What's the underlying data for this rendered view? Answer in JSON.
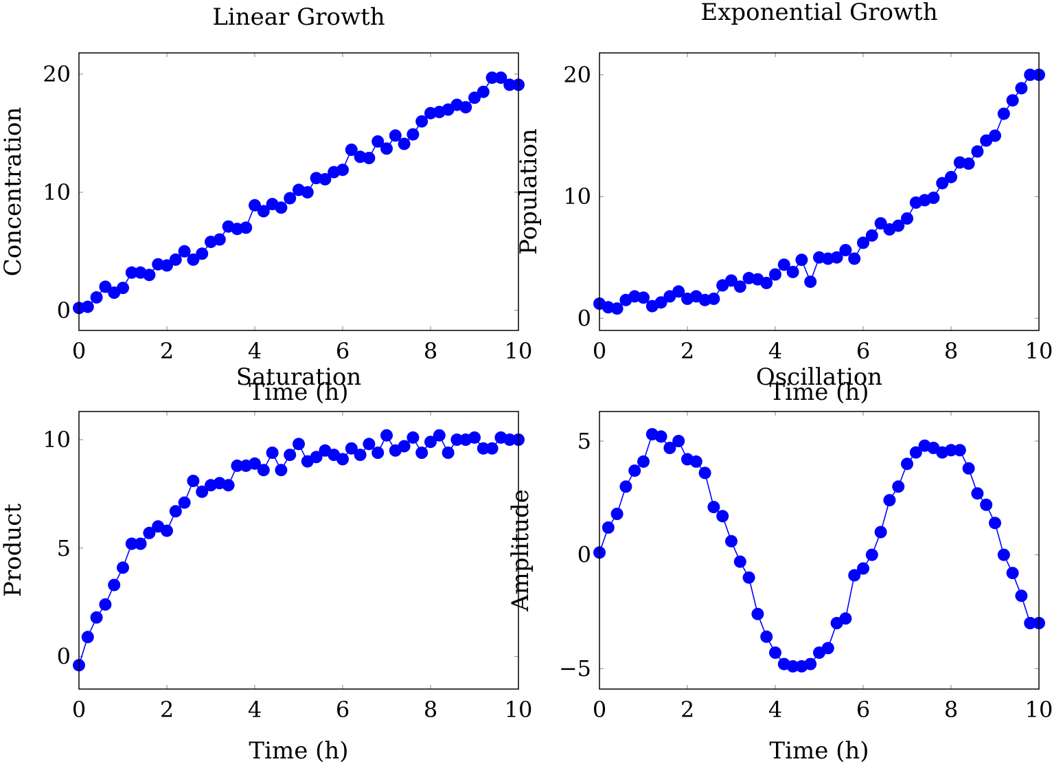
{
  "chart_data": [
    {
      "type": "line",
      "title": "Linear Growth",
      "xlabel": "Time (h)",
      "ylabel": "Concentration",
      "xlim": [
        0,
        10
      ],
      "ylim": [
        -1.7,
        21.8
      ],
      "xticks": [
        0,
        2,
        4,
        6,
        8,
        10
      ],
      "yticks": [
        0,
        10,
        20
      ],
      "xtick_labels": [
        "0",
        "2",
        "4",
        "6",
        "8",
        "10"
      ],
      "ytick_labels": [
        "0",
        "10",
        "20"
      ],
      "series_color": "#0000ff",
      "x": [
        0,
        0.2,
        0.4,
        0.6,
        0.8,
        1.0,
        1.2,
        1.4,
        1.6,
        1.8,
        2.0,
        2.2,
        2.4,
        2.6,
        2.8,
        3.0,
        3.2,
        3.4,
        3.6,
        3.8,
        4.0,
        4.2,
        4.4,
        4.6,
        4.8,
        5.0,
        5.2,
        5.4,
        5.6,
        5.8,
        6.0,
        6.2,
        6.4,
        6.6,
        6.8,
        7.0,
        7.2,
        7.4,
        7.6,
        7.8,
        8.0,
        8.2,
        8.4,
        8.6,
        8.8,
        9.0,
        9.2,
        9.4,
        9.6,
        9.8,
        10.0
      ],
      "y": [
        0.2,
        0.3,
        1.1,
        2.0,
        1.5,
        1.9,
        3.2,
        3.2,
        3.0,
        3.9,
        3.8,
        4.3,
        5.0,
        4.3,
        4.8,
        5.8,
        6.0,
        7.1,
        6.9,
        7.0,
        8.9,
        8.4,
        9.0,
        8.7,
        9.5,
        10.2,
        10.0,
        11.2,
        11.1,
        11.7,
        11.9,
        13.6,
        13.0,
        12.9,
        14.3,
        13.7,
        14.8,
        14.1,
        14.9,
        16.0,
        16.7,
        16.8,
        17.0,
        17.4,
        17.2,
        18.0,
        18.5,
        19.7,
        19.7,
        19.1,
        19.1
      ]
    },
    {
      "type": "line",
      "title": "Exponential Growth",
      "xlabel": "Time (h)",
      "ylabel": "Population",
      "xlim": [
        0,
        10
      ],
      "ylim": [
        -1.0,
        21.8
      ],
      "xticks": [
        0,
        2,
        4,
        6,
        8,
        10
      ],
      "yticks": [
        0,
        10,
        20
      ],
      "xtick_labels": [
        "0",
        "2",
        "4",
        "6",
        "8",
        "10"
      ],
      "ytick_labels": [
        "0",
        "10",
        "20"
      ],
      "series_color": "#0000ff",
      "x": [
        0,
        0.2,
        0.4,
        0.6,
        0.8,
        1.0,
        1.2,
        1.4,
        1.6,
        1.8,
        2.0,
        2.2,
        2.4,
        2.6,
        2.8,
        3.0,
        3.2,
        3.4,
        3.6,
        3.8,
        4.0,
        4.2,
        4.4,
        4.6,
        4.8,
        5.0,
        5.2,
        5.4,
        5.6,
        5.8,
        6.0,
        6.2,
        6.4,
        6.6,
        6.8,
        7.0,
        7.2,
        7.4,
        7.6,
        7.8,
        8.0,
        8.2,
        8.4,
        8.6,
        8.8,
        9.0,
        9.2,
        9.4,
        9.6,
        9.8,
        10.0
      ],
      "y": [
        1.2,
        0.9,
        0.8,
        1.5,
        1.8,
        1.7,
        1.0,
        1.3,
        1.8,
        2.2,
        1.6,
        1.8,
        1.5,
        1.6,
        2.7,
        3.1,
        2.6,
        3.3,
        3.2,
        2.9,
        3.6,
        4.4,
        3.8,
        4.8,
        3.0,
        5.0,
        4.9,
        5.0,
        5.6,
        4.9,
        6.2,
        6.8,
        7.8,
        7.3,
        7.6,
        8.2,
        9.5,
        9.7,
        9.9,
        11.1,
        11.6,
        12.8,
        12.7,
        13.7,
        14.6,
        15.0,
        16.8,
        17.9,
        18.9,
        20.0,
        20.0
      ]
    },
    {
      "type": "line",
      "title": "Saturation",
      "xlabel": "Time (h)",
      "ylabel": "Product",
      "xlim": [
        0,
        10
      ],
      "ylim": [
        -1.5,
        11.3
      ],
      "xticks": [
        0,
        2,
        4,
        6,
        8,
        10
      ],
      "yticks": [
        0,
        5,
        10
      ],
      "xtick_labels": [
        "0",
        "2",
        "4",
        "6",
        "8",
        "10"
      ],
      "ytick_labels": [
        "0",
        "5",
        "10"
      ],
      "series_color": "#0000ff",
      "x": [
        0,
        0.2,
        0.4,
        0.6,
        0.8,
        1.0,
        1.2,
        1.4,
        1.6,
        1.8,
        2.0,
        2.2,
        2.4,
        2.6,
        2.8,
        3.0,
        3.2,
        3.4,
        3.6,
        3.8,
        4.0,
        4.2,
        4.4,
        4.6,
        4.8,
        5.0,
        5.2,
        5.4,
        5.6,
        5.8,
        6.0,
        6.2,
        6.4,
        6.6,
        6.8,
        7.0,
        7.2,
        7.4,
        7.6,
        7.8,
        8.0,
        8.2,
        8.4,
        8.6,
        8.8,
        9.0,
        9.2,
        9.4,
        9.6,
        9.8,
        10.0
      ],
      "y": [
        -0.4,
        0.9,
        1.8,
        2.4,
        3.3,
        4.1,
        5.2,
        5.2,
        5.7,
        6.0,
        5.8,
        6.7,
        7.1,
        8.1,
        7.6,
        7.9,
        8.0,
        7.9,
        8.8,
        8.8,
        8.9,
        8.6,
        9.4,
        8.6,
        9.3,
        9.8,
        9.0,
        9.2,
        9.5,
        9.3,
        9.1,
        9.6,
        9.3,
        9.8,
        9.4,
        10.2,
        9.5,
        9.7,
        10.1,
        9.4,
        9.9,
        10.2,
        9.4,
        10.0,
        10.0,
        10.1,
        9.6,
        9.6,
        10.1,
        10.0,
        10.0
      ]
    },
    {
      "type": "line",
      "title": "Oscillation",
      "xlabel": "Time (h)",
      "ylabel": "Amplitude",
      "xlim": [
        0,
        10
      ],
      "ylim": [
        -5.9,
        6.3
      ],
      "xticks": [
        0,
        2,
        4,
        6,
        8,
        10
      ],
      "yticks": [
        -5,
        0,
        5
      ],
      "xtick_labels": [
        "0",
        "2",
        "4",
        "6",
        "8",
        "10"
      ],
      "ytick_labels": [
        "−5",
        "0",
        "5"
      ],
      "series_color": "#0000ff",
      "x": [
        0,
        0.2,
        0.4,
        0.6,
        0.8,
        1.0,
        1.2,
        1.4,
        1.6,
        1.8,
        2.0,
        2.2,
        2.4,
        2.6,
        2.8,
        3.0,
        3.2,
        3.4,
        3.6,
        3.8,
        4.0,
        4.2,
        4.4,
        4.6,
        4.8,
        5.0,
        5.2,
        5.4,
        5.6,
        5.8,
        6.0,
        6.2,
        6.4,
        6.6,
        6.8,
        7.0,
        7.2,
        7.4,
        7.6,
        7.8,
        8.0,
        8.2,
        8.4,
        8.6,
        8.8,
        9.0,
        9.2,
        9.4,
        9.6,
        9.8,
        10.0
      ],
      "y": [
        0.1,
        1.2,
        1.8,
        3.0,
        3.7,
        4.1,
        5.3,
        5.2,
        4.7,
        5.0,
        4.2,
        4.1,
        3.6,
        2.1,
        1.7,
        0.6,
        -0.3,
        -1.0,
        -2.6,
        -3.6,
        -4.3,
        -4.8,
        -4.9,
        -4.9,
        -4.8,
        -4.3,
        -4.1,
        -3.0,
        -2.8,
        -0.9,
        -0.6,
        0.0,
        1.0,
        2.4,
        3.0,
        4.0,
        4.5,
        4.8,
        4.7,
        4.5,
        4.6,
        4.6,
        3.8,
        2.7,
        2.2,
        1.4,
        0.0,
        -0.8,
        -1.8,
        -3.0,
        -3.0
      ]
    }
  ]
}
